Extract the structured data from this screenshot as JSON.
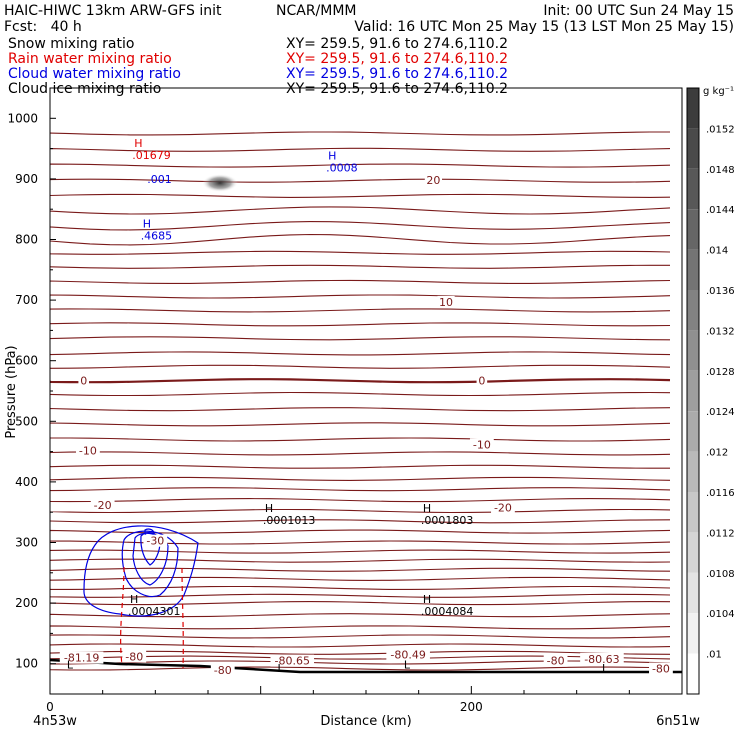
{
  "header": {
    "title_left": "HAIC-HIWC 13km ARW-GFS init",
    "org": "NCAR/MMM",
    "init": "Init: 00 UTC Sun 24 May 15",
    "fcst": "Fcst:   40 h",
    "valid": "Valid: 16 UTC Mon 25 May 15 (13 LST Mon 25 May 15)",
    "fields": [
      {
        "name": "Snow mixing ratio",
        "xy": "XY= 259.5, 91.6 to 274.6,110.2",
        "color": "#000000"
      },
      {
        "name": "Rain water mixing ratio",
        "xy": "XY= 259.5, 91.6 to 274.6,110.2",
        "color": "#e00000"
      },
      {
        "name": "Cloud water mixing ratio",
        "xy": "XY= 259.5, 91.6 to 274.6,110.2",
        "color": "#0000e0"
      },
      {
        "name": "Cloud ice mixing ratio",
        "xy": "XY= 259.5, 91.6 to 274.6,110.2",
        "color": "#000000"
      }
    ]
  },
  "chart_data": {
    "type": "cross-section",
    "xlabel": "Distance (km)",
    "ylabel": "Pressure (hPa)",
    "xlim": [
      0,
      300
    ],
    "ylim": [
      1050,
      50
    ],
    "x_ticks": [
      "0",
      "200"
    ],
    "y_ticks": [
      "100",
      "200",
      "300",
      "400",
      "500",
      "600",
      "700",
      "800",
      "900",
      "1000"
    ],
    "left_endpoint": "4n53w",
    "right_endpoint": "6n51w",
    "temperature_contour_labels": [
      {
        "text": "-81.19",
        "x": 15,
        "p": 110
      },
      {
        "text": "-80",
        "x": 40,
        "p": 112
      },
      {
        "text": "-80",
        "x": 82,
        "p": 90
      },
      {
        "text": "-80.65",
        "x": 115,
        "p": 105
      },
      {
        "text": "-80.49",
        "x": 170,
        "p": 115
      },
      {
        "text": "-80",
        "x": 240,
        "p": 105
      },
      {
        "text": "-80.63",
        "x": 262,
        "p": 108
      },
      {
        "text": "-80",
        "x": 290,
        "p": 92
      },
      {
        "text": "-30",
        "x": 50,
        "p": 303
      },
      {
        "text": "-20",
        "x": 25,
        "p": 362
      },
      {
        "text": "-20",
        "x": 215,
        "p": 358
      },
      {
        "text": "-10",
        "x": 18,
        "p": 452
      },
      {
        "text": "-10",
        "x": 205,
        "p": 462
      },
      {
        "text": "0",
        "x": 16,
        "p": 567
      },
      {
        "text": "0",
        "x": 205,
        "p": 567
      },
      {
        "text": "10",
        "x": 188,
        "p": 697
      },
      {
        "text": "20",
        "x": 182,
        "p": 898
      }
    ],
    "extrema_labels": [
      {
        "kind": "L",
        "x": 8,
        "p": 92,
        "color": "#000000"
      },
      {
        "kind": "L",
        "x": 108,
        "p": 86,
        "color": "#000000"
      },
      {
        "kind": "L",
        "x": 168,
        "p": 92,
        "color": "#000000"
      },
      {
        "kind": "L",
        "x": 262,
        "p": 86,
        "color": "#000000"
      },
      {
        "kind": "H",
        "value": ".0004301",
        "x": 38,
        "p": 200,
        "color": "#000000"
      },
      {
        "kind": "H",
        "value": ".0004084",
        "x": 177,
        "p": 200,
        "color": "#000000"
      },
      {
        "kind": "H",
        "value": ".0001013",
        "x": 102,
        "p": 350,
        "color": "#000000"
      },
      {
        "kind": "H",
        "value": ".0001803",
        "x": 177,
        "p": 350,
        "color": "#000000"
      },
      {
        "kind": "H",
        "value": ".4685",
        "x": 44,
        "p": 820,
        "color": "#0000e0"
      },
      {
        "kind": "H",
        "value": ".01679",
        "x": 40,
        "p": 953,
        "color": "#e00000"
      },
      {
        "kind": "H",
        "value": ".0008",
        "x": 132,
        "p": 932,
        "color": "#0000e0"
      }
    ],
    "contour_value_labels": [
      {
        "text": ".001",
        "x": 52,
        "p": 900,
        "color": "#0000e0"
      }
    ],
    "colorbar": {
      "unit": "g kg⁻¹",
      "ticks": [
        ".0152",
        ".0148",
        ".0144",
        ".014",
        ".0136",
        ".0132",
        ".0128",
        ".0124",
        ".012",
        ".0116",
        ".0112",
        ".0108",
        ".0104",
        ".01"
      ]
    }
  }
}
